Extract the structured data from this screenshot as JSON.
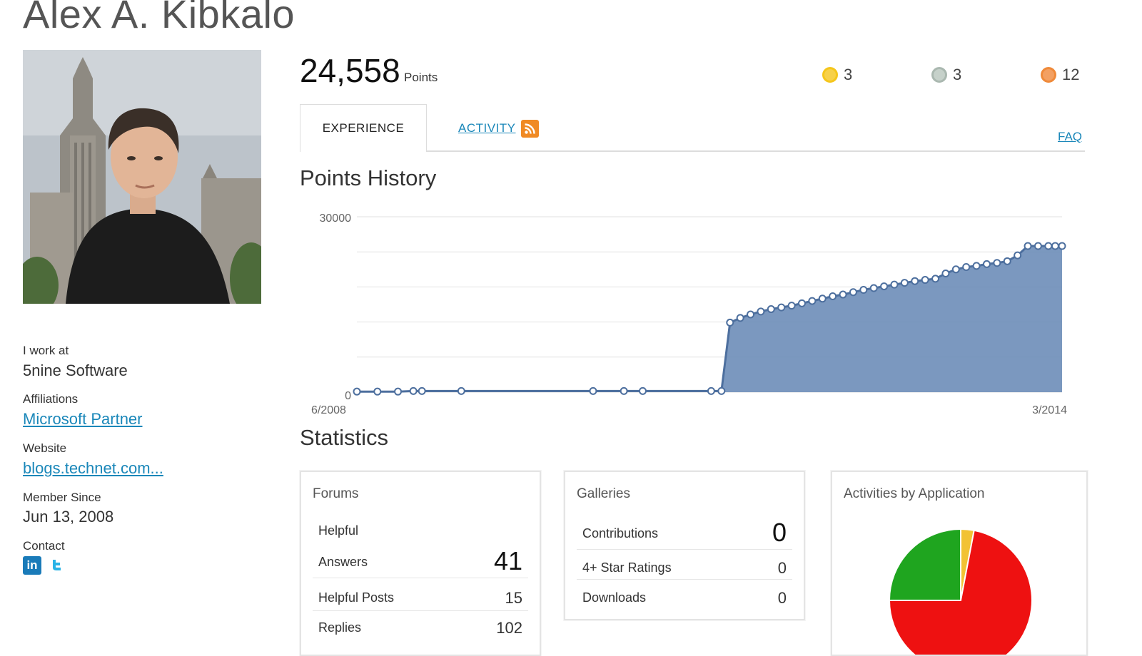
{
  "profile": {
    "name": "Alex A. Kibkalo",
    "work_label": "I work at",
    "work_value": "5nine Software",
    "affiliations_label": "Affiliations",
    "affiliations_value": "Microsoft Partner",
    "website_label": "Website",
    "website_value": "blogs.technet.com...",
    "member_label": "Member Since",
    "member_value": "Jun 13, 2008",
    "contact_label": "Contact"
  },
  "points": {
    "value": "24,558",
    "label": "Points"
  },
  "medals": [
    {
      "name": "gold-medal",
      "count": "3",
      "color": "#f5c61c"
    },
    {
      "name": "silver-medal",
      "count": "3",
      "color": "#aab8b0"
    },
    {
      "name": "bronze-medal",
      "count": "12",
      "color": "#ef8a3a"
    }
  ],
  "tabs": {
    "experience": "EXPERIENCE",
    "activity": "ACTIVITY",
    "faq": "FAQ"
  },
  "points_history": {
    "title": "Points History"
  },
  "chart_data": {
    "type": "area",
    "title": "Points History",
    "ylim": [
      0,
      30000
    ],
    "y_ticks": [
      "30000",
      "0"
    ],
    "x_tick_labels": [
      "6/2008",
      "3/2014"
    ],
    "grid": true,
    "series": [
      {
        "color": "#6d8db8",
        "x": [
          0,
          0.6,
          1.2,
          1.65,
          1.9,
          3.05,
          6.9,
          7.8,
          8.35,
          10.35,
          10.65,
          10.9,
          11.2,
          11.5,
          11.8,
          12.1,
          12.4,
          12.7,
          13.0,
          13.3,
          13.6,
          13.9,
          14.2,
          14.5,
          14.8,
          15.1,
          15.4,
          15.7,
          16.0,
          16.3,
          16.6,
          16.9,
          17.2,
          17.5,
          17.8,
          18.1,
          18.4,
          18.7,
          19.0,
          19.3,
          19.6,
          19.9,
          20.2,
          20.4,
          20.6
        ],
        "values": [
          100,
          100,
          100,
          200,
          200,
          200,
          200,
          200,
          200,
          200,
          200,
          11900,
          12700,
          13300,
          13800,
          14200,
          14500,
          14800,
          15200,
          15600,
          16000,
          16400,
          16700,
          17100,
          17500,
          17800,
          18100,
          18400,
          18700,
          19000,
          19200,
          19400,
          20300,
          21000,
          21400,
          21600,
          21900,
          22100,
          22400,
          23400,
          25000,
          25000,
          25000,
          25000,
          25000
        ]
      }
    ]
  },
  "statistics": {
    "title": "Statistics"
  },
  "forums": {
    "title": "Forums",
    "helpful_label": "Helpful",
    "answers_label": "Answers",
    "answers_value": "41",
    "posts_label": "Helpful Posts",
    "posts_value": "15",
    "replies_label": "Replies",
    "replies_value": "102"
  },
  "galleries": {
    "title": "Galleries",
    "rows": [
      {
        "label": "Contributions",
        "value": "0"
      },
      {
        "label": "4+ Star Ratings",
        "value": "0"
      },
      {
        "label": "Downloads",
        "value": "0"
      }
    ]
  },
  "activities": {
    "title": "Activities by Application",
    "slices": [
      {
        "value": 3,
        "color": "#f2c233"
      },
      {
        "value": 72,
        "color": "#ee1111"
      },
      {
        "value": 25,
        "color": "#1fa51f"
      }
    ]
  }
}
